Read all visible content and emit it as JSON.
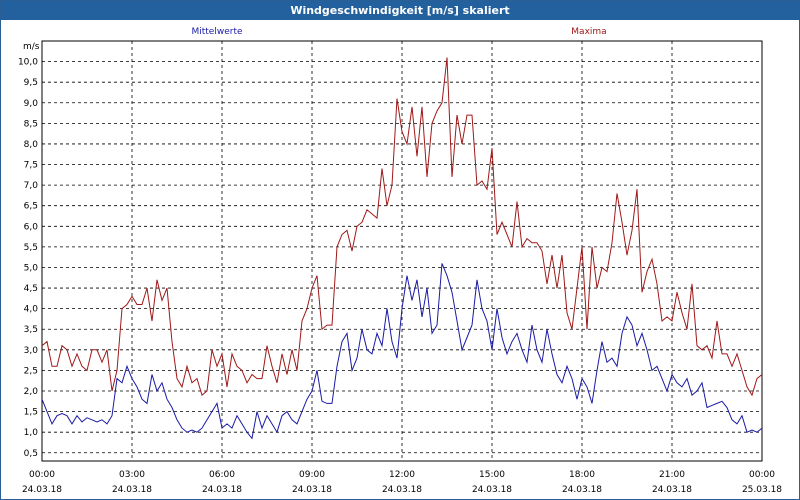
{
  "window": {
    "title": "Windgeschwindigkeit [m/s] skaliert"
  },
  "chart_data": {
    "type": "line",
    "title": "Windgeschwindigkeit [m/s] skaliert",
    "ylabel": "m/s",
    "xlabel": "",
    "ylim": [
      0.3,
      10.5
    ],
    "xlim": [
      0,
      24
    ],
    "grid": true,
    "legend": "top",
    "yticks": [
      0.5,
      1.0,
      1.5,
      2.0,
      2.5,
      3.0,
      3.5,
      4.0,
      4.5,
      5.0,
      5.5,
      6.0,
      6.5,
      7.0,
      7.5,
      8.0,
      8.5,
      9.0,
      9.5,
      10.0
    ],
    "ytick_labels": [
      "0,5",
      "1,0",
      "1,5",
      "2,0",
      "2,5",
      "3,0",
      "3,5",
      "4,0",
      "4,5",
      "5,0",
      "5,5",
      "6,0",
      "6,5",
      "7,0",
      "7,5",
      "8,0",
      "8,5",
      "9,0",
      "9,5",
      "10,0"
    ],
    "xticks": [
      {
        "x": 0,
        "time": "00:00",
        "date": "24.03.18"
      },
      {
        "x": 3,
        "time": "03:00",
        "date": "24.03.18"
      },
      {
        "x": 6,
        "time": "06:00",
        "date": "24.03.18"
      },
      {
        "x": 9,
        "time": "09:00",
        "date": "24.03.18"
      },
      {
        "x": 12,
        "time": "12:00",
        "date": "24.03.18"
      },
      {
        "x": 15,
        "time": "15:00",
        "date": "24.03.18"
      },
      {
        "x": 18,
        "time": "18:00",
        "date": "24.03.18"
      },
      {
        "x": 21,
        "time": "21:00",
        "date": "24.03.18"
      },
      {
        "x": 24,
        "time": "00:00",
        "date": "25.03.18"
      }
    ],
    "x": [
      0,
      0.167,
      0.333,
      0.5,
      0.667,
      0.833,
      1,
      1.167,
      1.333,
      1.5,
      1.667,
      1.833,
      2,
      2.167,
      2.333,
      2.5,
      2.667,
      2.833,
      3,
      3.167,
      3.333,
      3.5,
      3.667,
      3.833,
      4,
      4.167,
      4.333,
      4.5,
      4.667,
      4.833,
      5,
      5.167,
      5.333,
      5.5,
      5.667,
      5.833,
      6,
      6.167,
      6.333,
      6.5,
      6.667,
      6.833,
      7,
      7.167,
      7.333,
      7.5,
      7.667,
      7.833,
      8,
      8.167,
      8.333,
      8.5,
      8.667,
      8.833,
      9,
      9.167,
      9.333,
      9.5,
      9.667,
      9.833,
      10,
      10.167,
      10.333,
      10.5,
      10.667,
      10.833,
      11,
      11.167,
      11.333,
      11.5,
      11.667,
      11.833,
      12,
      12.167,
      12.333,
      12.5,
      12.667,
      12.833,
      13,
      13.167,
      13.333,
      13.5,
      13.667,
      13.833,
      14,
      14.167,
      14.333,
      14.5,
      14.667,
      14.833,
      15,
      15.167,
      15.333,
      15.5,
      15.667,
      15.833,
      16,
      16.167,
      16.333,
      16.5,
      16.667,
      16.833,
      17,
      17.167,
      17.333,
      17.5,
      17.667,
      17.833,
      18,
      18.167,
      18.333,
      18.5,
      18.667,
      18.833,
      19,
      19.167,
      19.333,
      19.5,
      19.667,
      19.833,
      20,
      20.167,
      20.333,
      20.5,
      20.667,
      20.833,
      21,
      21.167,
      21.333,
      21.5,
      21.667,
      21.833,
      22,
      22.167,
      22.333,
      22.5,
      22.667,
      22.833,
      23,
      23.167,
      23.333,
      23.5,
      23.667,
      23.833,
      24
    ],
    "series": [
      {
        "name": "Mittelwerte",
        "color": "#1a1aa6",
        "values": [
          1.8,
          1.5,
          1.2,
          1.4,
          1.45,
          1.4,
          1.2,
          1.4,
          1.25,
          1.35,
          1.3,
          1.25,
          1.3,
          1.2,
          1.4,
          2.3,
          2.2,
          2.6,
          2.3,
          2.1,
          1.8,
          1.7,
          2.4,
          2.0,
          2.2,
          1.8,
          1.6,
          1.3,
          1.1,
          1.0,
          1.05,
          1.0,
          1.1,
          1.3,
          1.5,
          1.7,
          1.1,
          1.2,
          1.1,
          1.4,
          1.2,
          1.0,
          0.85,
          1.5,
          1.1,
          1.4,
          1.2,
          1.0,
          1.4,
          1.5,
          1.3,
          1.2,
          1.5,
          1.8,
          2.0,
          2.5,
          1.75,
          1.7,
          1.7,
          2.6,
          3.2,
          3.4,
          2.5,
          2.8,
          3.5,
          3.0,
          2.9,
          3.4,
          3.1,
          4.0,
          3.2,
          2.8,
          4.0,
          4.8,
          4.2,
          4.7,
          3.8,
          4.5,
          3.4,
          3.6,
          5.1,
          4.8,
          4.4,
          3.7,
          3.0,
          3.3,
          3.6,
          4.7,
          4.0,
          3.7,
          3.0,
          4.0,
          3.3,
          2.9,
          3.2,
          3.4,
          3.0,
          2.7,
          3.6,
          3.0,
          2.7,
          3.5,
          2.9,
          2.4,
          2.2,
          2.6,
          2.3,
          1.8,
          2.3,
          2.1,
          1.7,
          2.5,
          3.2,
          2.7,
          2.8,
          2.6,
          3.4,
          3.8,
          3.6,
          3.1,
          3.4,
          3.0,
          2.5,
          2.6,
          2.3,
          2.0,
          2.4,
          2.2,
          2.1,
          2.3,
          1.9,
          2.0,
          2.2,
          1.6,
          1.65,
          1.7,
          1.75,
          1.6,
          1.3,
          1.2,
          1.4,
          1.0,
          1.05,
          1.0,
          1.1
        ]
      },
      {
        "name": "Maxima",
        "color": "#a01818",
        "values": [
          3.1,
          3.2,
          2.6,
          2.6,
          3.1,
          3.0,
          2.6,
          2.9,
          2.6,
          2.5,
          3.0,
          3.0,
          2.7,
          3.0,
          2.0,
          2.5,
          4.0,
          4.1,
          4.3,
          4.1,
          4.1,
          4.5,
          3.7,
          4.7,
          4.2,
          4.5,
          3.2,
          2.3,
          2.1,
          2.6,
          2.2,
          2.3,
          1.9,
          2.0,
          3.0,
          2.6,
          2.9,
          2.1,
          2.9,
          2.6,
          2.5,
          2.2,
          2.4,
          2.3,
          2.3,
          3.1,
          2.6,
          2.2,
          2.9,
          2.4,
          3.0,
          2.5,
          3.7,
          4.0,
          4.5,
          4.8,
          3.5,
          3.6,
          3.6,
          5.5,
          5.8,
          5.9,
          5.4,
          6.0,
          6.1,
          6.4,
          6.3,
          6.2,
          7.4,
          6.5,
          7.0,
          9.1,
          8.3,
          8.0,
          8.9,
          7.7,
          8.9,
          7.2,
          8.5,
          8.8,
          9.0,
          10.1,
          7.2,
          8.7,
          8.0,
          8.7,
          8.7,
          7.0,
          7.1,
          6.9,
          7.9,
          5.8,
          6.1,
          5.8,
          5.5,
          6.6,
          5.5,
          5.7,
          5.6,
          5.6,
          5.4,
          4.6,
          5.3,
          4.5,
          5.3,
          3.9,
          3.5,
          4.5,
          5.5,
          3.5,
          5.5,
          4.5,
          5.0,
          4.9,
          5.6,
          6.8,
          6.1,
          5.3,
          5.9,
          6.9,
          4.4,
          4.9,
          5.2,
          4.6,
          3.7,
          3.8,
          3.7,
          4.4,
          3.9,
          3.5,
          4.6,
          3.1,
          3.0,
          3.1,
          2.8,
          3.7,
          2.9,
          2.9,
          2.6,
          2.9,
          2.5,
          2.1,
          1.9,
          2.3,
          2.4
        ]
      }
    ]
  }
}
